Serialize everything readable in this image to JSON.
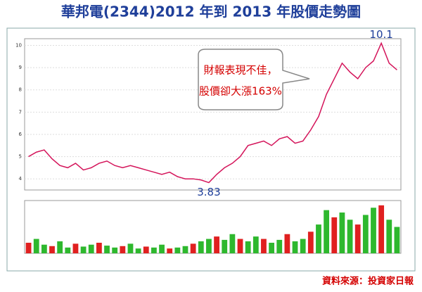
{
  "title": "華邦電(2344)2012 年到 2013 年股價走勢圖",
  "callout": {
    "lines": [
      "財報表現不佳，",
      "股價卻大漲163%"
    ]
  },
  "source": "資料來源：投資家日報",
  "chart_data": [
    {
      "type": "line",
      "color": "#d4145a",
      "categories": [
        null,
        null,
        null,
        null,
        null,
        null,
        null,
        null,
        null,
        null,
        null,
        null,
        null,
        null,
        null,
        null,
        null,
        null,
        null,
        null,
        null,
        null,
        null,
        null,
        null,
        null,
        null,
        null,
        null,
        null,
        null,
        null,
        null,
        null,
        null,
        null,
        null,
        null,
        null,
        null,
        null,
        null,
        null,
        null,
        null,
        null,
        null,
        null
      ],
      "values": [
        5.0,
        5.2,
        5.3,
        4.9,
        4.6,
        4.5,
        4.7,
        4.4,
        4.5,
        4.7,
        4.8,
        4.6,
        4.5,
        4.6,
        4.5,
        4.4,
        4.3,
        4.2,
        4.3,
        4.1,
        4.0,
        4.0,
        3.95,
        3.83,
        4.2,
        4.5,
        4.7,
        5.0,
        5.5,
        5.6,
        5.7,
        5.5,
        5.8,
        5.9,
        5.6,
        5.7,
        6.2,
        6.8,
        7.8,
        8.5,
        9.2,
        8.8,
        8.5,
        9.0,
        9.3,
        10.1,
        9.2,
        8.9
      ],
      "value_labels": [
        null,
        null,
        null,
        null,
        null,
        null,
        null,
        null,
        null,
        null,
        null,
        null,
        null,
        null,
        null,
        null,
        null,
        null,
        null,
        null,
        null,
        null,
        null,
        "3.83",
        null,
        null,
        null,
        null,
        null,
        null,
        null,
        null,
        null,
        null,
        null,
        null,
        null,
        null,
        null,
        null,
        null,
        null,
        null,
        null,
        null,
        "10.1",
        null,
        null
      ],
      "ylim": [
        3.5,
        10.3
      ],
      "yticks": [
        4,
        5,
        6,
        7,
        8,
        9,
        10
      ],
      "grid": true
    },
    {
      "type": "bar",
      "color": "#2eb82e",
      "values": [
        22,
        30,
        18,
        15,
        25,
        12,
        20,
        14,
        18,
        22,
        16,
        12,
        15,
        20,
        10,
        14,
        12,
        18,
        10,
        12,
        15,
        20,
        25,
        30,
        35,
        28,
        40,
        30,
        25,
        35,
        30,
        22,
        28,
        40,
        25,
        30,
        45,
        60,
        90,
        75,
        85,
        70,
        60,
        80,
        95,
        100,
        70,
        55
      ],
      "ylim": [
        0,
        110
      ],
      "grid": true
    }
  ]
}
